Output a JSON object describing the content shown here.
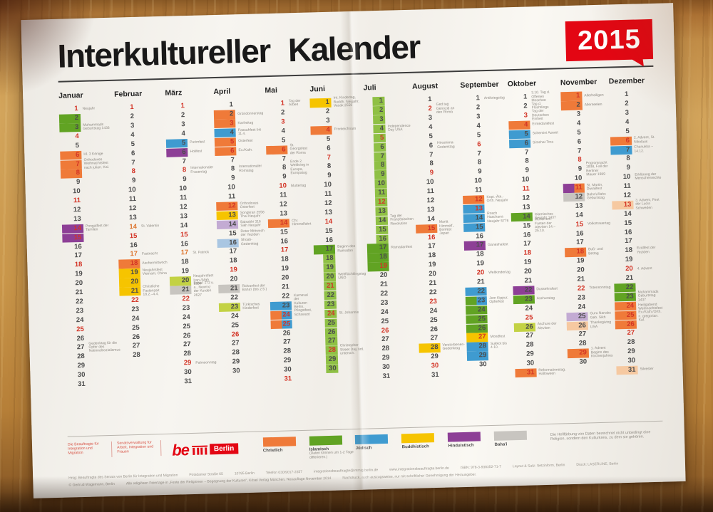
{
  "header": {
    "title": "Interkultureller Kalender",
    "year": "2015"
  },
  "colors": {
    "orange": "#ef7a39",
    "green": "#61a323",
    "strip": "#8fc045",
    "blue": "#3f9bd0",
    "yellow": "#f6c400",
    "purple": "#8d3f96",
    "gray": "#c8c5c0",
    "lpurple": "#c3abd3",
    "lblue": "#a9c6e2",
    "lorange": "#f6c9a1",
    "lime": "#c3d244",
    "accent_red": "#e30613",
    "sunday_red": "#d33426"
  },
  "months": [
    {
      "name": "Januar",
      "days": 31,
      "specials": {
        "1": {
          "n": "red",
          "t": "Neujahr"
        },
        "2": {
          "c": [
            "green"
          ]
        },
        "3": {
          "c": [
            "green"
          ],
          "t": "Muhammads Geburtstag 1436"
        },
        "4": {
          "n": "red"
        },
        "6": {
          "c": [
            "orange"
          ],
          "n": "red",
          "t": "Hl. 3 Könige"
        },
        "7": {
          "c": [
            "orange"
          ],
          "n": "red",
          "t": "Orthodoxes Weihnachtsfest nach julian. Kal."
        },
        "8": {
          "c": [
            "orange"
          ],
          "n": "red"
        },
        "11": {
          "n": "red"
        },
        "14": {
          "c": [
            "purple"
          ],
          "n": "red",
          "t": "Pongalfest der Tamilen"
        },
        "15": {
          "c": [
            "purple"
          ],
          "n": "red"
        },
        "18": {
          "n": "red"
        },
        "25": {
          "n": "red"
        },
        "27": {
          "t": "Gedenktag für die Opfer des Nationalsozialismus"
        }
      }
    },
    {
      "name": "Februar",
      "days": 28,
      "specials": {
        "1": {
          "n": "red"
        },
        "8": {
          "n": "red"
        },
        "14": {
          "n": "orange",
          "t": "St. Valentin"
        },
        "15": {
          "n": "red"
        },
        "17": {
          "n": "orange",
          "t": "Fastnacht"
        },
        "18": {
          "c": [
            "orange"
          ],
          "n": "red",
          "t": "Aschermittwoch"
        },
        "19": {
          "c": [
            "yellow"
          ],
          "t": "Neujahrsfest Vietnam, China"
        },
        "20": {
          "c": [
            "yellow"
          ]
        },
        "21": {
          "c": [
            "yellow"
          ],
          "t": "Christliche Fastenzeit 18.2.–4.4."
        },
        "22": {
          "n": "red"
        }
      }
    },
    {
      "name": "März",
      "days": 31,
      "specials": {
        "1": {
          "n": "red"
        },
        "5": {
          "c": [
            "blue"
          ],
          "t": "Purimfest"
        },
        "6": {
          "c": [
            "purple"
          ],
          "t": "Holifest"
        },
        "8": {
          "n": "red",
          "t": "Internationaler Frauentag"
        },
        "15": {
          "n": "red"
        },
        "17": {
          "n": "orange",
          "t": "St. Patrick"
        },
        "20": {
          "c": [
            "lime"
          ],
          "t": "Neujahrsfest Iran,/Afgh. 1394"
        },
        "21": {
          "c": [
            "gray"
          ],
          "t": "Baha'i 172 u. a., Newroz der Kurden 2627"
        },
        "22": {
          "n": "red"
        },
        "29": {
          "n": "red",
          "t": "Palmsonntag"
        }
      }
    },
    {
      "name": "April",
      "days": 30,
      "specials": {
        "2": {
          "c": [
            "orange"
          ],
          "t": "Gründonnerstag"
        },
        "3": {
          "c": [
            "orange"
          ],
          "n": "red",
          "t": "Karfreitag"
        },
        "4": {
          "c": [
            "blue"
          ],
          "t": "Passahfest bis 11.4."
        },
        "5": {
          "c": [
            "orange"
          ],
          "n": "red",
          "t": "Osterfest"
        },
        "6": {
          "c": [
            "orange"
          ],
          "n": "red",
          "t": "Ev./Kath."
        },
        "8": {
          "t": "Internationaler Romatag"
        },
        "12": {
          "c": [
            "orange"
          ],
          "n": "red",
          "t": "Orthodoxes Osterfest"
        },
        "13": {
          "c": [
            "yellow"
          ],
          "t": "Songkran 2558 Thai Neujahr"
        },
        "14": {
          "c": [
            "lpurple"
          ],
          "t": "Baisakhi 316 Sikh Neujahr"
        },
        "15": {
          "t": "Roter Mittwoch der Yeziden"
        },
        "16": {
          "c": [
            "lblue"
          ],
          "t": "Shoah-Gedenktag"
        },
        "19": {
          "n": "red"
        },
        "21": {
          "c": [
            "gray"
          ],
          "t": "Ridvanfest der Baha'i (bis 2.5.)"
        },
        "23": {
          "c": [
            "lime"
          ],
          "t": "Türkisches Kinderfest"
        },
        "26": {
          "n": "red"
        }
      }
    },
    {
      "name": "Mai",
      "days": 31,
      "specials": {
        "1": {
          "n": "red",
          "t": "Tag der Arbeit"
        },
        "3": {
          "n": "red"
        },
        "6": {
          "c": [
            "orange"
          ],
          "n": "red",
          "t": "St. Georgsfest der Roma"
        },
        "8": {
          "t": "Ende 2. Weltkrieg in Europa, Europatag"
        },
        "10": {
          "n": "red",
          "t": "Muttertag"
        },
        "14": {
          "c": [
            "orange"
          ],
          "n": "red",
          "t": "Chr. Himmelfahrt"
        },
        "17": {
          "n": "red"
        },
        "23": {
          "c": [
            "blue"
          ],
          "t": "Karneval der Kulturen Berlin, Pfingstfest, Schawuot"
        },
        "24": {
          "c": [
            "orange",
            "blue"
          ],
          "n": "red"
        },
        "25": {
          "c": [
            "orange",
            "blue"
          ],
          "n": "red"
        },
        "31": {
          "n": "red"
        }
      }
    },
    {
      "name": "Juni",
      "days": 30,
      "strip": [
        18,
        30
      ],
      "specials": {
        "1": {
          "c": [
            "yellow"
          ],
          "t": "Int. Kindertag, Buddh. Neujahr, Vesak 2559"
        },
        "4": {
          "c": [
            "orange"
          ],
          "n": "red",
          "t": "Fronleichnam"
        },
        "7": {
          "n": "red"
        },
        "14": {
          "n": "red"
        },
        "17": {
          "c": [
            "green"
          ],
          "t": "Beginn des Ramadan"
        },
        "20": {
          "t": "Weltflüchtlingstag UNO"
        },
        "21": {
          "n": "red"
        },
        "24": {
          "n": "red",
          "t": "St. Johannis"
        },
        "28": {
          "n": "red",
          "t": "Christopher Street Day örtl. untersch."
        }
      }
    },
    {
      "name": "Juli",
      "days": 31,
      "strip": [
        1,
        16
      ],
      "specials": {
        "4": {
          "t": "Independence Day USA"
        },
        "5": {
          "n": "red"
        },
        "12": {
          "n": "red"
        },
        "14": {
          "t": "Tag der Französischen Revolution"
        },
        "17": {
          "c": [
            "green"
          ],
          "t": "Ramadanfest"
        },
        "18": {
          "c": [
            "green"
          ]
        },
        "19": {
          "c": [
            "green"
          ],
          "n": "red"
        },
        "26": {
          "n": "red"
        }
      }
    },
    {
      "name": "August",
      "days": 31,
      "specials": {
        "2": {
          "n": "red",
          "t": "Ged.tag Genozid an den Roma"
        },
        "6": {
          "t": "Hiroshima-Gedenktag"
        },
        "9": {
          "n": "red"
        },
        "15": {
          "c": [
            "orange"
          ],
          "n": "red",
          "t": "Mariä Himmelf., Bonfest Japan"
        },
        "16": {
          "n": "red"
        },
        "23": {
          "n": "red"
        },
        "28": {
          "c": [
            "yellow"
          ],
          "t": "Verstorbenen-Gedenktag"
        },
        "30": {
          "n": "red"
        }
      }
    },
    {
      "name": "September",
      "days": 30,
      "specials": {
        "1": {
          "t": "Antikriegstag"
        },
        "6": {
          "n": "red"
        },
        "12": {
          "c": [
            "orange"
          ],
          "n": "red",
          "t": "Kopt.-Äth.-Orth. Neujahr"
        },
        "13": {
          "c": [
            "blue"
          ],
          "n": "red"
        },
        "14": {
          "c": [
            "blue"
          ],
          "t": "Rosch Haschana Neujahr 5776"
        },
        "15": {
          "c": [
            "blue"
          ]
        },
        "17": {
          "c": [
            "purple"
          ],
          "t": "Ganeshafest"
        },
        "20": {
          "n": "red",
          "t": "Weltkindertag"
        },
        "22": {
          "c": [
            "blue"
          ]
        },
        "23": {
          "c": [
            "green",
            "blue"
          ],
          "t": "Jom Kippur, Opferfest"
        },
        "24": {
          "c": [
            "green"
          ]
        },
        "25": {
          "c": [
            "green"
          ]
        },
        "26": {
          "c": [
            "green"
          ]
        },
        "27": {
          "c": [
            "yellow"
          ],
          "n": "red",
          "t": "Mondfest"
        },
        "28": {
          "c": [
            "blue"
          ],
          "t": "Sukkot bis 4.10."
        },
        "29": {
          "c": [
            "blue"
          ]
        }
      }
    },
    {
      "name": "Oktober",
      "days": 31,
      "specials": {
        "1": {
          "t": "3.10. Tag d. Offenen Moschee"
        },
        "2": {
          "t": "Tag d. Flüchtlings"
        },
        "3": {
          "n": "red",
          "t": "Tag der Deutschen Einheit"
        },
        "4": {
          "c": [
            "orange"
          ],
          "n": "red",
          "t": "Erntedankfest"
        },
        "5": {
          "c": [
            "blue"
          ],
          "t": "Schemini Azeret"
        },
        "6": {
          "c": [
            "blue"
          ],
          "t": "Simchat Tora"
        },
        "11": {
          "n": "red"
        },
        "14": {
          "c": [
            "green"
          ],
          "t": "Islamisches Neujahr 1437"
        },
        "15": {
          "t": "Muharrem-Fasten der Aleviten 14.–25.10."
        },
        "18": {
          "n": "red"
        },
        "22": {
          "c": [
            "purple"
          ],
          "t": "Dussehrafest"
        },
        "23": {
          "c": [
            "green"
          ],
          "t": "Aschuratag"
        },
        "25": {
          "n": "red"
        },
        "26": {
          "c": [
            "lime"
          ],
          "t": "Aschure der Aleviten"
        },
        "31": {
          "c": [
            "orange"
          ],
          "n": "red",
          "t": "Reformationstag, Halloween"
        }
      }
    },
    {
      "name": "November",
      "days": 30,
      "specials": {
        "1": {
          "c": [
            "orange"
          ],
          "n": "red",
          "t": "Allerheiligen"
        },
        "2": {
          "c": [
            "orange"
          ],
          "t": "Allerseelen"
        },
        "8": {
          "n": "red"
        },
        "9": {
          "t": "Pogromnacht 1938, Fall der Berliner Mauer 1989"
        },
        "11": {
          "c": [
            "purple",
            "orange"
          ],
          "n": "red",
          "t": "St. Martin, Diwalifest"
        },
        "12": {
          "c": [
            "gray"
          ],
          "t": "Baha'u'llahs Geburtstag"
        },
        "15": {
          "n": "red",
          "t": "Volkstrauertag"
        },
        "18": {
          "c": [
            "orange"
          ],
          "n": "red",
          "t": "Buß- und Bettag"
        },
        "22": {
          "n": "red",
          "t": "Totensonntag"
        },
        "25": {
          "c": [
            "lpurple"
          ],
          "t": "Guru Nanaks Geb. Sikh"
        },
        "26": {
          "c": [
            "lorange"
          ],
          "t": "Thanksgiving USA"
        },
        "29": {
          "c": [
            "orange"
          ],
          "n": "red",
          "t": "1. Advent Beginn des Kirchenjahres"
        }
      }
    },
    {
      "name": "Dezember",
      "days": 31,
      "specials": {
        "6": {
          "c": [
            "orange"
          ],
          "n": "red",
          "t": "2. Advent, St. Nikolaus"
        },
        "7": {
          "c": [
            "blue"
          ],
          "t": "Chanukka –14.12."
        },
        "10": {
          "t": "Erklärung der Menschenrechte"
        },
        "13": {
          "c": [
            "lorange"
          ],
          "n": "red",
          "t": "3. Advent, Fest der Lucia Schweden"
        },
        "18": {
          "t": "Ezidfest der Yeziden"
        },
        "20": {
          "n": "red",
          "t": "4. Advent"
        },
        "22": {
          "c": [
            "green"
          ]
        },
        "23": {
          "c": [
            "green"
          ],
          "t": "Muhammads Geburtstag 1437"
        },
        "24": {
          "c": [
            "orange"
          ],
          "n": "red",
          "t": "Heiligabend"
        },
        "25": {
          "c": [
            "orange"
          ],
          "n": "red",
          "t": "Weihnachtsfest Ev./Kath./Orth. n. gregorian. Kal."
        },
        "26": {
          "c": [
            "orange"
          ],
          "n": "red"
        },
        "27": {
          "n": "red"
        },
        "31": {
          "c": [
            "lorange"
          ],
          "t": "Silvester"
        }
      }
    }
  ],
  "publisher": {
    "block1": "Die Beauftragte für Integration und Migration",
    "block2": "Senatsverwaltung für Arbeit, Integration und Frauen",
    "logo_be": "be",
    "logo_city": "Berlin"
  },
  "legend": {
    "items": [
      {
        "label": "Christlich",
        "color": "#ef7a39",
        "note": ""
      },
      {
        "label": "Islamisch",
        "color": "#61a323",
        "note": "(Daten können um 1-2 Tage differieren.)"
      },
      {
        "label": "Jüdisch",
        "color": "#3f9bd0",
        "note": ""
      },
      {
        "label": "Buddhistisch",
        "color": "#f6c400",
        "note": ""
      },
      {
        "label": "Hinduistisch",
        "color": "#8d3f96",
        "note": ""
      },
      {
        "label": "Baha'i",
        "color": "#c8c5c0",
        "note": ""
      }
    ],
    "note": "Die Hellfärbung von Daten bezeichnet nicht unbedingt eine Religion, sondern den Kulturkreis, zu dem sie gehören."
  },
  "footer": {
    "line1": [
      "Hrsg: Beauftragte des Senats von Berlin für Integration und Migration",
      "Potsdamer Straße 65",
      "10785 Berlin",
      "Telefon 030/9017-2357",
      "integrationsbeauftragte@intmig.berlin.de",
      "www.integrationsbeauftragte.berlin.de",
      "ISBN: 978-3-938352-71-7",
      "Layout & Satz: Setzinform, Berlin",
      "Druck: LASERLINE, Berlin"
    ],
    "line2": [
      "© Gertrud Wagemann, Berlin",
      "Alle religiösen Feiertage in „Feste der Religionen – Begegnung der Kulturen“, Kösel Verlag München, Neuauflage November 2014",
      "Nachdruck, auch auszugsweise, nur mit schriftlicher Genehmigung der Herausgeber."
    ]
  }
}
